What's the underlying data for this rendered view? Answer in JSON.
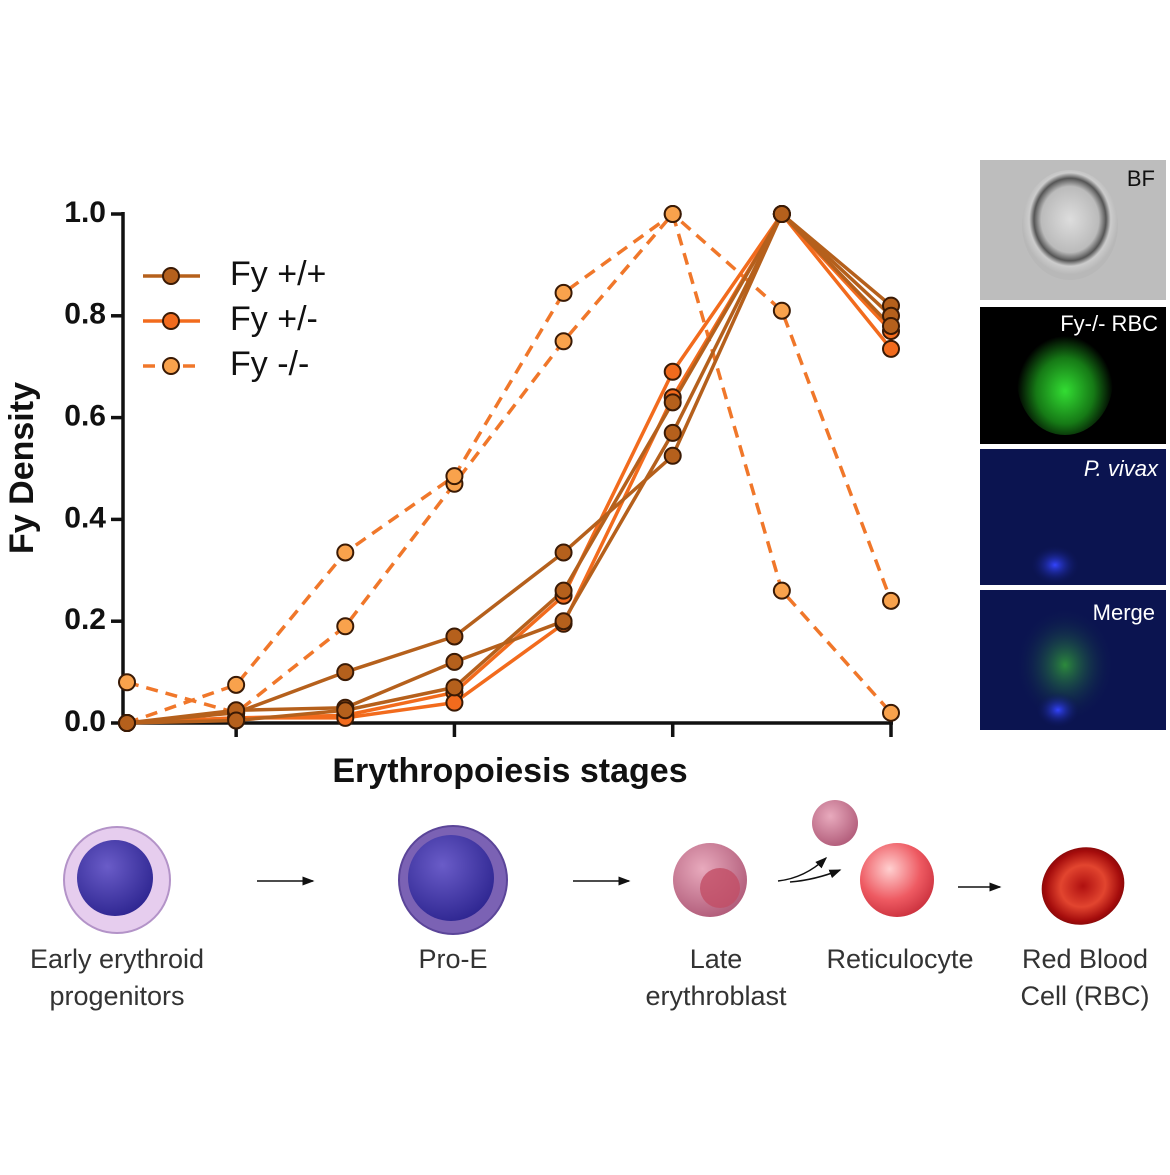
{
  "chart_data": {
    "type": "line",
    "x_label": "Erythropoiesis stages",
    "y_label": "Fy Density",
    "categories": [
      null,
      null,
      null,
      null,
      null,
      null,
      null,
      null
    ],
    "ylim": [
      0,
      1
    ],
    "yticks": [
      {
        "value": 0,
        "label": "0.0"
      },
      0.2,
      0.4,
      0.6,
      0.8,
      {
        "value": 1,
        "label": "1.0"
      }
    ],
    "legend": "upper left",
    "series": [
      {
        "name": "Fy +/+",
        "color": "#b5601c",
        "marker_color": "#b5601c",
        "dashed": false,
        "values": [
          [
            0,
            0.02,
            0.1,
            0.17,
            0.335,
            0.525,
            1,
            0.82
          ],
          [
            0,
            0.025,
            0.03,
            0.12,
            0.2,
            0.57,
            1,
            0.8
          ],
          [
            0,
            0.005,
            0.025,
            0.07,
            0.26,
            0.63,
            1,
            0.78
          ]
        ]
      },
      {
        "name": "Fy +/-",
        "color": "#f26b1d",
        "marker_color": "#f26b1d",
        "dashed": false,
        "values": [
          [
            0,
            0.01,
            0.015,
            0.06,
            0.25,
            0.69,
            1,
            0.735
          ],
          [
            0,
            0.01,
            0.01,
            0.04,
            0.195,
            0.64,
            1,
            0.77
          ]
        ]
      },
      {
        "name": "Fy -/-",
        "color": "#f0772a",
        "marker_color": "#f9a24c",
        "dashed": true,
        "values": [
          [
            0.08,
            0.02,
            0.19,
            0.47,
            0.75,
            1,
            0.26,
            0.02
          ],
          [
            0,
            0.075,
            0.335,
            0.485,
            0.845,
            1,
            0.81,
            0.24
          ]
        ]
      }
    ]
  },
  "micrograph_panels": [
    "BF",
    "Fy-/- RBC",
    "P. vivax",
    "Merge"
  ],
  "stage_labels": [
    [
      "Early erythroid",
      "progenitors"
    ],
    [
      "Pro-E"
    ],
    [
      "Late",
      "erythroblast"
    ],
    [
      "Reticulocyte"
    ],
    [
      "Red Blood",
      "Cell (RBC)"
    ]
  ]
}
